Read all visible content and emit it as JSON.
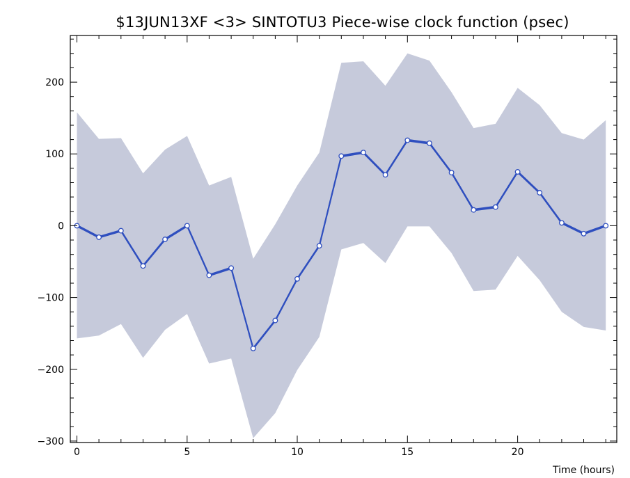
{
  "colors": {
    "background": "#ffffff",
    "band_fill": "#c6cadb",
    "line": "#2f4fbf",
    "marker_fill": "#ffffff",
    "marker_stroke": "#2f4fbf",
    "axis": "#000000",
    "text": "#000000"
  },
  "chart_data": {
    "type": "line",
    "title": "$13JUN13XF <3>  SINTOTU3  Piece-wise clock function (psec)",
    "xlabel": "Time (hours)",
    "ylabel": "",
    "xlim": [
      -0.3,
      24.5
    ],
    "ylim": [
      -302,
      265
    ],
    "x_ticks": [
      0,
      5,
      10,
      15,
      20
    ],
    "x_tick_labels": [
      "0",
      "5",
      "10",
      "15",
      "20"
    ],
    "x_minor_step": 1,
    "y_ticks": [
      -300,
      -200,
      -100,
      0,
      100,
      200
    ],
    "y_tick_labels": [
      "−300",
      "−200",
      "−100",
      "0",
      "100",
      "200"
    ],
    "y_minor_step": 20,
    "grid": false,
    "legend": false,
    "x": [
      0,
      1,
      2,
      3,
      4,
      5,
      6,
      7,
      8,
      9,
      10,
      11,
      12,
      13,
      14,
      15,
      16,
      17,
      18,
      19,
      20,
      21,
      22,
      23,
      24
    ],
    "series": [
      {
        "values": [
          0,
          -16,
          -7,
          -56,
          -19,
          0,
          -69,
          -59,
          -171,
          -132,
          -74,
          -28,
          97,
          102,
          71,
          119,
          115,
          74,
          22,
          26,
          75,
          46,
          4,
          -11,
          0
        ]
      }
    ],
    "band": {
      "upper": [
        158,
        121,
        122,
        73,
        106,
        125,
        56,
        68,
        -46,
        2,
        56,
        102,
        227,
        229,
        195,
        240,
        230,
        186,
        136,
        142,
        192,
        168,
        129,
        120,
        147
      ],
      "lower": [
        -157,
        -153,
        -137,
        -184,
        -145,
        -123,
        -192,
        -185,
        -296,
        -261,
        -201,
        -155,
        -33,
        -24,
        -52,
        -1,
        -1,
        -38,
        -91,
        -89,
        -42,
        -76,
        -120,
        -141,
        -146
      ]
    }
  }
}
